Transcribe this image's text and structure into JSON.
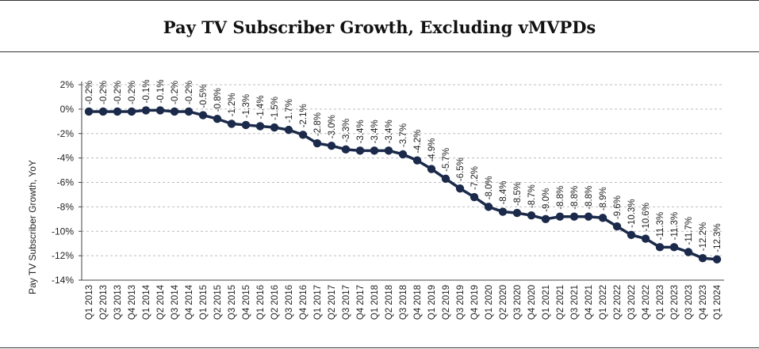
{
  "chart_data": {
    "type": "line",
    "title": "Pay TV Subscriber Growth, Excluding vMVPDs",
    "ylabel": "Pay TV Subscriber Growth, YoY",
    "xlabel": "",
    "ylim": [
      -14,
      2
    ],
    "yticks": [
      "2%",
      "0%",
      "-2%",
      "-4%",
      "-6%",
      "-8%",
      "-10%",
      "-12%",
      "-14%"
    ],
    "grid": "horizontal-dashed",
    "categories": [
      "Q1 2013",
      "Q2 2013",
      "Q3 2013",
      "Q4 2013",
      "Q1 2014",
      "Q2 2014",
      "Q3 2014",
      "Q4 2014",
      "Q1 2015",
      "Q2 2015",
      "Q3 2015",
      "Q4 2015",
      "Q1 2016",
      "Q2 2016",
      "Q3 2016",
      "Q4 2016",
      "Q1 2017",
      "Q2 2017",
      "Q3 2017",
      "Q4 2017",
      "Q1 2018",
      "Q2 2018",
      "Q3 2018",
      "Q4 2018",
      "Q1 2019",
      "Q2 2019",
      "Q3 2019",
      "Q4 2019",
      "Q1 2020",
      "Q2 2020",
      "Q3 2020",
      "Q4 2020",
      "Q1 2021",
      "Q2 2021",
      "Q3 2021",
      "Q4 2021",
      "Q1 2022",
      "Q2 2022",
      "Q3 2022",
      "Q4 2022",
      "Q1 2023",
      "Q2 2023",
      "Q3 2023",
      "Q4 2023",
      "Q1 2024"
    ],
    "values": [
      -0.2,
      -0.2,
      -0.2,
      -0.2,
      -0.1,
      -0.1,
      -0.2,
      -0.2,
      -0.5,
      -0.8,
      -1.2,
      -1.3,
      -1.4,
      -1.5,
      -1.7,
      -2.1,
      -2.8,
      -3.0,
      -3.3,
      -3.4,
      -3.4,
      -3.4,
      -3.7,
      -4.2,
      -4.9,
      -5.7,
      -6.5,
      -7.2,
      -8.0,
      -8.4,
      -8.5,
      -8.7,
      -9.0,
      -8.8,
      -8.8,
      -8.8,
      -8.9,
      -9.6,
      -10.3,
      -10.6,
      -11.3,
      -11.3,
      -11.7,
      -12.2,
      -12.3
    ],
    "data_labels": [
      "-0.2%",
      "-0.2%",
      "-0.2%",
      "-0.2%",
      "-0.1%",
      "-0.1%",
      "-0.2%",
      "-0.2%",
      "-0.5%",
      "-0.8%",
      "-1.2%",
      "-1.3%",
      "-1.4%",
      "-1.5%",
      "-1.7%",
      "-2.1%",
      "-2.8%",
      "-3.0%",
      "-3.3%",
      "-3.4%",
      "-3.4%",
      "-3.4%",
      "-3.7%",
      "-4.2%",
      "-4.9%",
      "-5.7%",
      "-6.5%",
      "-7.2%",
      "-8.0%",
      "-8.4%",
      "-8.5%",
      "-8.7%",
      "-9.0%",
      "-8.8%",
      "-8.8%",
      "-8.8%",
      "-8.9%",
      "-9.6%",
      "-10.3%",
      "-10.6%",
      "-11.3%",
      "-11.3%",
      "-11.7%",
      "-12.2%",
      "-12.3%"
    ],
    "line_color": "#1b2a4a"
  }
}
